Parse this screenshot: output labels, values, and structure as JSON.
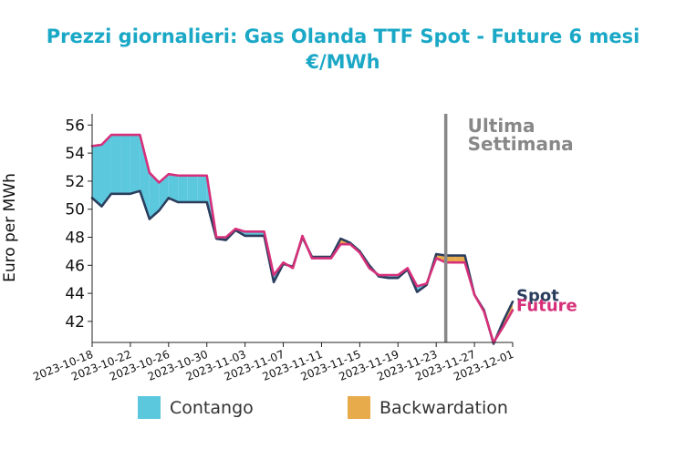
{
  "chart_data": {
    "type": "line",
    "title": "Prezzi giornalieri: Gas Olanda TTF Spot - Future 6 mesi",
    "subtitle": "€/MWh",
    "xlabel": "",
    "ylabel": "Euro per MWh",
    "ylim": [
      40.5,
      56.8
    ],
    "xlim": [
      "2023-10-18",
      "2023-12-01"
    ],
    "y_ticks": [
      42,
      44,
      46,
      48,
      50,
      52,
      54,
      56
    ],
    "x_ticks": [
      "2023-10-18",
      "2023-10-22",
      "2023-10-26",
      "2023-10-30",
      "2023-11-03",
      "2023-11-07",
      "2023-11-11",
      "2023-11-15",
      "2023-11-19",
      "2023-11-23",
      "2023-11-27",
      "2023-12-01"
    ],
    "grid": false,
    "annotation": {
      "label_line1": "Ultima",
      "label_line2": "Settimana",
      "x": "2023-11-24"
    },
    "legend": [
      {
        "name": "Contango",
        "color": "#5bc8de"
      },
      {
        "name": "Backwardation",
        "color": "#e8ab4c"
      }
    ],
    "x": [
      "2023-10-18",
      "2023-10-19",
      "2023-10-20",
      "2023-10-21",
      "2023-10-22",
      "2023-10-23",
      "2023-10-24",
      "2023-10-25",
      "2023-10-26",
      "2023-10-27",
      "2023-10-28",
      "2023-10-29",
      "2023-10-30",
      "2023-10-31",
      "2023-11-01",
      "2023-11-02",
      "2023-11-03",
      "2023-11-04",
      "2023-11-05",
      "2023-11-06",
      "2023-11-07",
      "2023-11-08",
      "2023-11-09",
      "2023-11-10",
      "2023-11-11",
      "2023-11-12",
      "2023-11-13",
      "2023-11-14",
      "2023-11-15",
      "2023-11-16",
      "2023-11-17",
      "2023-11-18",
      "2023-11-19",
      "2023-11-20",
      "2023-11-21",
      "2023-11-22",
      "2023-11-23",
      "2023-11-24",
      "2023-11-25",
      "2023-11-26",
      "2023-11-27",
      "2023-11-28",
      "2023-11-29",
      "2023-11-30",
      "2023-12-01"
    ],
    "series": [
      {
        "name": "Spot",
        "color": "#2c3e5e",
        "values": [
          50.8,
          50.2,
          51.1,
          51.1,
          51.1,
          51.3,
          49.3,
          49.9,
          50.8,
          50.5,
          50.5,
          50.5,
          50.5,
          47.9,
          47.8,
          48.5,
          48.1,
          48.1,
          48.1,
          44.8,
          46.1,
          45.9,
          48.0,
          46.6,
          46.6,
          46.6,
          47.9,
          47.6,
          47.0,
          46.0,
          45.2,
          45.1,
          45.1,
          45.7,
          44.1,
          44.6,
          46.8,
          46.7,
          46.7,
          46.7,
          43.9,
          42.8,
          40.4,
          42.0,
          43.4
        ]
      },
      {
        "name": "Future",
        "color": "#d6307a",
        "values": [
          54.5,
          54.6,
          55.3,
          55.3,
          55.3,
          55.3,
          52.6,
          51.9,
          52.5,
          52.4,
          52.4,
          52.4,
          52.4,
          48.0,
          48.0,
          48.6,
          48.4,
          48.4,
          48.4,
          45.3,
          46.2,
          45.8,
          48.1,
          46.5,
          46.5,
          46.5,
          47.5,
          47.5,
          46.9,
          45.8,
          45.3,
          45.3,
          45.3,
          45.8,
          44.5,
          44.7,
          46.5,
          46.2,
          46.2,
          46.2,
          43.9,
          42.7,
          40.5,
          41.6,
          42.8
        ]
      }
    ]
  }
}
